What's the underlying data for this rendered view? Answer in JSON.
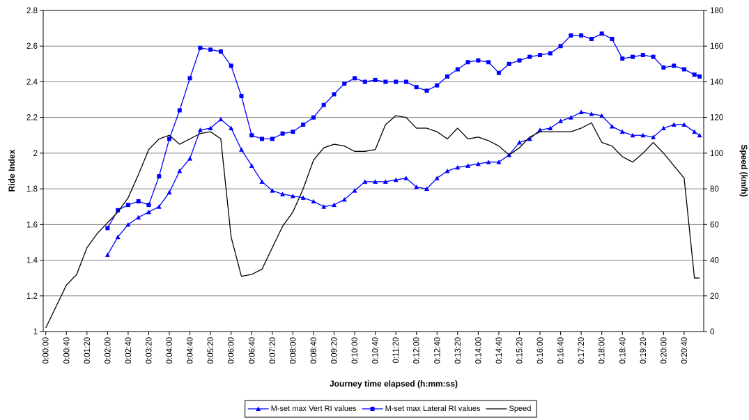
{
  "chart_data": {
    "type": "line",
    "x_title": "Journey time elapsed (h:mm:ss)",
    "y_title": "Ride Index",
    "y2_title": "Speed (km/h)",
    "x": [
      0,
      20,
      40,
      60,
      80,
      100,
      120,
      140,
      160,
      180,
      200,
      220,
      240,
      260,
      280,
      300,
      320,
      340,
      360,
      380,
      400,
      420,
      440,
      460,
      480,
      500,
      520,
      540,
      560,
      580,
      600,
      620,
      640,
      660,
      680,
      700,
      720,
      740,
      760,
      780,
      800,
      820,
      840,
      860,
      880,
      900,
      920,
      940,
      960,
      980,
      1000,
      1020,
      1040,
      1060,
      1080,
      1100,
      1120,
      1140,
      1160,
      1180,
      1200,
      1220,
      1240,
      1260,
      1270
    ],
    "xlim": [
      -5,
      1278
    ],
    "xticks": [
      {
        "value": 0,
        "label": "0:00:00"
      },
      {
        "value": 40,
        "label": "0:00:40"
      },
      {
        "value": 80,
        "label": "0:01:20"
      },
      {
        "value": 120,
        "label": "0:02:00"
      },
      {
        "value": 160,
        "label": "0:02:40"
      },
      {
        "value": 200,
        "label": "0:03:20"
      },
      {
        "value": 240,
        "label": "0:04:00"
      },
      {
        "value": 280,
        "label": "0:04:40"
      },
      {
        "value": 320,
        "label": "0:05:20"
      },
      {
        "value": 360,
        "label": "0:06:00"
      },
      {
        "value": 400,
        "label": "0:06:40"
      },
      {
        "value": 440,
        "label": "0:07:20"
      },
      {
        "value": 480,
        "label": "0:08:00"
      },
      {
        "value": 520,
        "label": "0:08:40"
      },
      {
        "value": 560,
        "label": "0:09:20"
      },
      {
        "value": 600,
        "label": "0:10:00"
      },
      {
        "value": 640,
        "label": "0:10:40"
      },
      {
        "value": 680,
        "label": "0:11:20"
      },
      {
        "value": 720,
        "label": "0:12:00"
      },
      {
        "value": 760,
        "label": "0:12:40"
      },
      {
        "value": 800,
        "label": "0:13:20"
      },
      {
        "value": 840,
        "label": "0:14:00"
      },
      {
        "value": 880,
        "label": "0:14:40"
      },
      {
        "value": 920,
        "label": "0:15:20"
      },
      {
        "value": 960,
        "label": "0:16:00"
      },
      {
        "value": 1000,
        "label": "0:16:40"
      },
      {
        "value": 1040,
        "label": "0:17:20"
      },
      {
        "value": 1080,
        "label": "0:18:00"
      },
      {
        "value": 1120,
        "label": "0:18:40"
      },
      {
        "value": 1160,
        "label": "0:19:20"
      },
      {
        "value": 1200,
        "label": "0:20:00"
      },
      {
        "value": 1240,
        "label": "0:20:40"
      }
    ],
    "ylim": [
      1,
      2.8
    ],
    "yticks": [
      1,
      1.2,
      1.4,
      1.6,
      1.8,
      2,
      2.2,
      2.4,
      2.6,
      2.8
    ],
    "y2lim": [
      0,
      180
    ],
    "y2ticks": [
      0,
      20,
      40,
      60,
      80,
      100,
      120,
      140,
      160,
      180
    ],
    "grid": true,
    "legend": "bottom",
    "series": [
      {
        "name": "M-set max Vert RI values",
        "color": "#0000ff",
        "marker": "triangle",
        "values": [
          null,
          null,
          null,
          null,
          null,
          null,
          1.43,
          1.53,
          1.6,
          1.64,
          1.67,
          1.7,
          1.78,
          1.9,
          1.97,
          2.13,
          2.14,
          2.19,
          2.14,
          2.02,
          1.93,
          1.84,
          1.79,
          1.77,
          1.76,
          1.75,
          1.73,
          1.7,
          1.71,
          1.74,
          1.79,
          1.84,
          1.84,
          1.84,
          1.85,
          1.86,
          1.81,
          1.8,
          1.86,
          1.9,
          1.92,
          1.93,
          1.94,
          1.95,
          1.95,
          1.99,
          2.06,
          2.08,
          2.13,
          2.14,
          2.18,
          2.2,
          2.23,
          2.22,
          2.21,
          2.15,
          2.12,
          2.1,
          2.1,
          2.09,
          2.14,
          2.16,
          2.16,
          2.12,
          2.1
        ]
      },
      {
        "name": "M-set max Lateral RI values",
        "color": "#0000ff",
        "marker": "square",
        "values": [
          null,
          null,
          null,
          null,
          null,
          null,
          1.58,
          1.68,
          1.71,
          1.73,
          1.71,
          1.87,
          2.08,
          2.24,
          2.42,
          2.59,
          2.58,
          2.57,
          2.49,
          2.32,
          2.1,
          2.08,
          2.08,
          2.11,
          2.12,
          2.16,
          2.2,
          2.27,
          2.33,
          2.39,
          2.42,
          2.4,
          2.41,
          2.4,
          2.4,
          2.4,
          2.37,
          2.35,
          2.38,
          2.43,
          2.47,
          2.51,
          2.52,
          2.51,
          2.45,
          2.5,
          2.52,
          2.54,
          2.55,
          2.56,
          2.6,
          2.66,
          2.66,
          2.64,
          2.67,
          2.64,
          2.53,
          2.54,
          2.55,
          2.54,
          2.48,
          2.49,
          2.47,
          2.44,
          2.43
        ]
      },
      {
        "name": "Speed",
        "color": "#000000",
        "marker": "none",
        "axis": "y2",
        "values": [
          2,
          14,
          26,
          32,
          47,
          55,
          61,
          67,
          75,
          88,
          102,
          108,
          110,
          105,
          108,
          111,
          112,
          108,
          53,
          31,
          32,
          35,
          47,
          59,
          67,
          80,
          96,
          103,
          105,
          104,
          101,
          101,
          102,
          116,
          121,
          120,
          114,
          114,
          112,
          108,
          114,
          108,
          109,
          107,
          104,
          99,
          103,
          109,
          112,
          112,
          112,
          112,
          114,
          117,
          106,
          104,
          98,
          95,
          100,
          106,
          100,
          93,
          86,
          30,
          30
        ]
      }
    ]
  }
}
